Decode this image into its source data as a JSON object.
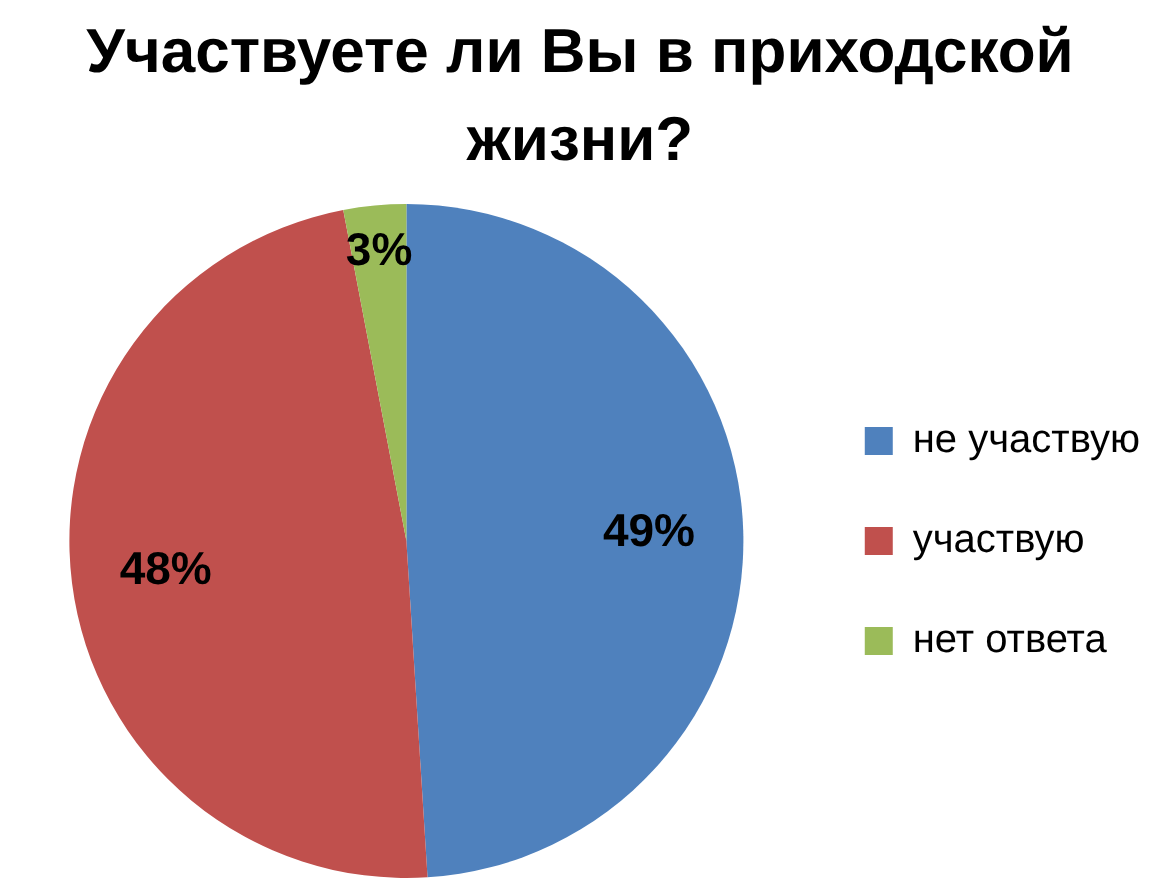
{
  "chart_data": {
    "type": "pie",
    "title": "Участвуете ли Вы в приходской жизни?",
    "categories": [
      "не участвую",
      "участвую",
      "нет ответа"
    ],
    "values": [
      49,
      48,
      3
    ],
    "colors": [
      "#4f81bd",
      "#c0504d",
      "#9bbb59"
    ],
    "value_labels": [
      "49%",
      "48%",
      "3%"
    ],
    "legend": "right"
  }
}
